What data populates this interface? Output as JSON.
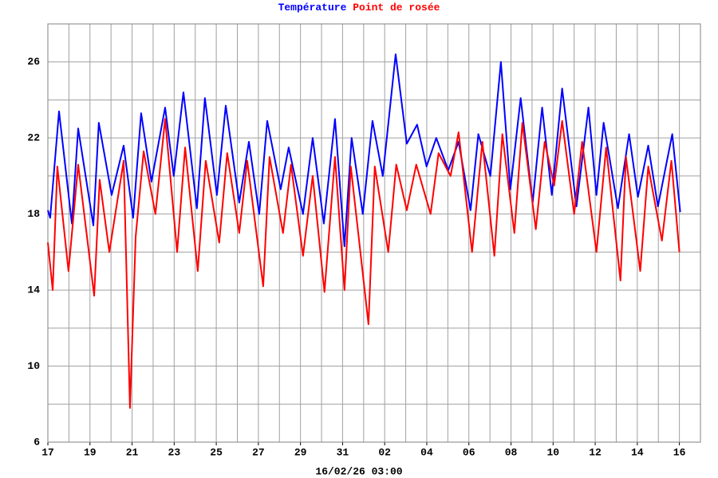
{
  "chart_data": {
    "type": "line",
    "title": [
      "Température",
      "Point de rosée"
    ],
    "xlabel": "16/02/26 03:00",
    "xlim": [
      0,
      31
    ],
    "ylim": [
      6,
      28
    ],
    "xticks": [
      {
        "value": 0,
        "label": "17"
      },
      {
        "value": 2,
        "label": "19"
      },
      {
        "value": 4,
        "label": "21"
      },
      {
        "value": 6,
        "label": "23"
      },
      {
        "value": 8,
        "label": "25"
      },
      {
        "value": 10,
        "label": "27"
      },
      {
        "value": 12,
        "label": "29"
      },
      {
        "value": 14,
        "label": "31"
      },
      {
        "value": 16,
        "label": "02"
      },
      {
        "value": 18,
        "label": "04"
      },
      {
        "value": 20,
        "label": "06"
      },
      {
        "value": 22,
        "label": "08"
      },
      {
        "value": 24,
        "label": "10"
      },
      {
        "value": 26,
        "label": "12"
      },
      {
        "value": 28,
        "label": "14"
      },
      {
        "value": 30,
        "label": "16"
      }
    ],
    "xminor": [
      1,
      3,
      5,
      7,
      9,
      11,
      13,
      15,
      17,
      19,
      21,
      23,
      25,
      27,
      29
    ],
    "yticks": [
      6,
      10,
      14,
      18,
      22,
      26
    ],
    "yminor": [
      8,
      12,
      16,
      20,
      24
    ],
    "grid": true,
    "series": [
      {
        "name": "Température",
        "color": "#0000ff",
        "x": [
          0,
          0.11,
          0.53,
          1.14,
          1.44,
          2.16,
          2.42,
          3.03,
          3.6,
          4.05,
          4.43,
          4.92,
          5.57,
          5.98,
          6.44,
          7.08,
          7.46,
          8.03,
          8.45,
          9.09,
          9.55,
          10.04,
          10.42,
          11.06,
          11.44,
          12.12,
          12.58,
          13.11,
          13.64,
          14.09,
          14.43,
          14.96,
          15.42,
          15.91,
          16.52,
          17.05,
          17.54,
          17.99,
          18.45,
          19.02,
          19.51,
          20.08,
          20.45,
          21.02,
          21.52,
          21.97,
          22.46,
          23.03,
          23.48,
          23.94,
          24.43,
          25.11,
          25.68,
          26.06,
          26.4,
          27.08,
          27.61,
          28.03,
          28.52,
          28.98,
          29.66,
          30.04
        ],
        "values": [
          18.2,
          17.8,
          23.4,
          17.5,
          22.5,
          17.4,
          22.8,
          19.0,
          21.6,
          17.8,
          23.3,
          19.7,
          23.6,
          20.0,
          24.4,
          18.3,
          24.1,
          19.0,
          23.7,
          18.6,
          21.8,
          18.0,
          22.9,
          19.3,
          21.5,
          18.0,
          22.0,
          17.5,
          23.0,
          16.3,
          22.0,
          18.0,
          22.9,
          20.0,
          26.4,
          21.7,
          22.7,
          20.5,
          22.0,
          20.3,
          21.8,
          18.2,
          22.2,
          20.0,
          26.0,
          19.3,
          24.1,
          18.6,
          23.6,
          19.0,
          24.6,
          18.4,
          23.6,
          19.0,
          22.8,
          18.3,
          22.2,
          18.9,
          21.6,
          18.4,
          22.2,
          18.1
        ]
      },
      {
        "name": "Point de rosée",
        "color": "#ff0000",
        "x": [
          0,
          0.23,
          0.45,
          0.98,
          1.44,
          2.2,
          2.46,
          2.92,
          3.6,
          3.9,
          4.17,
          4.55,
          5.11,
          5.57,
          6.14,
          6.52,
          7.12,
          7.5,
          8.14,
          8.52,
          9.09,
          9.47,
          10.23,
          10.53,
          11.17,
          11.55,
          12.12,
          12.58,
          13.14,
          13.64,
          14.09,
          14.39,
          15.23,
          15.53,
          16.17,
          16.55,
          17.05,
          17.5,
          18.18,
          18.56,
          19.13,
          19.51,
          20.15,
          20.64,
          21.21,
          21.59,
          22.16,
          22.54,
          23.18,
          23.6,
          24.05,
          24.43,
          25.0,
          25.38,
          26.06,
          26.52,
          27.2,
          27.46,
          28.14,
          28.52,
          29.17,
          29.62,
          30.0
        ],
        "values": [
          16.5,
          14.0,
          20.5,
          15.0,
          20.6,
          13.7,
          19.8,
          16.0,
          20.8,
          7.8,
          16.8,
          21.3,
          18,
          23.0,
          16.0,
          21.5,
          15.0,
          20.8,
          16.5,
          21.2,
          17.0,
          20.8,
          14.2,
          21.0,
          17.0,
          20.6,
          15.8,
          20.0,
          13.9,
          21.0,
          14.0,
          20.5,
          12.2,
          20.5,
          16.0,
          20.6,
          18.2,
          20.6,
          18.0,
          21.2,
          20.0,
          22.3,
          16.0,
          21.8,
          15.8,
          22.2,
          17.0,
          22.8,
          17.2,
          21.8,
          19.5,
          22.9,
          18.0,
          21.8,
          16.0,
          21.5,
          14.5,
          21.0,
          15.0,
          20.5,
          16.6,
          20.8,
          16.0
        ]
      }
    ]
  }
}
